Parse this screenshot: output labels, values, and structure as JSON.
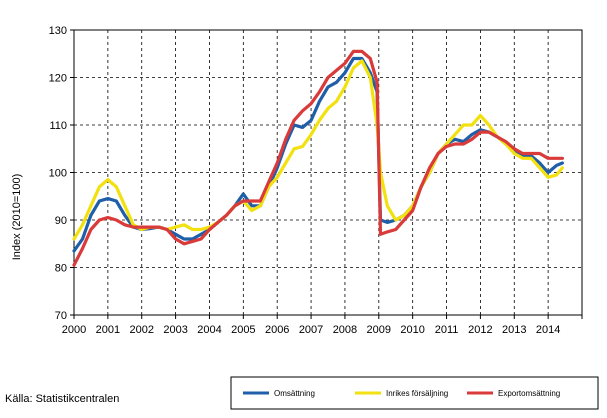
{
  "chart_data": {
    "type": "line",
    "title": "",
    "xlabel": "",
    "ylabel": "Index (2010=100)",
    "ylim": [
      70,
      130
    ],
    "yticks": [
      70,
      80,
      90,
      100,
      110,
      120,
      130
    ],
    "xlim": [
      2000,
      2015
    ],
    "xticks": [
      "2000",
      "2001",
      "2002",
      "2003",
      "2004",
      "2005",
      "2006",
      "2007",
      "2008",
      "2009",
      "2010",
      "2011",
      "2012",
      "2013",
      "2014"
    ],
    "grid": "dashed-both",
    "legend_position": "bottom-right",
    "series": [
      {
        "name": "Omsättning",
        "color": "#1f5ea8",
        "points": [
          [
            2000.0,
            83.5
          ],
          [
            2000.25,
            86
          ],
          [
            2000.5,
            91
          ],
          [
            2000.75,
            94
          ],
          [
            2001.0,
            94.5
          ],
          [
            2001.25,
            94
          ],
          [
            2001.5,
            91
          ],
          [
            2001.75,
            88.5
          ],
          [
            2002.0,
            88
          ],
          [
            2002.25,
            88.2
          ],
          [
            2002.5,
            88.5
          ],
          [
            2002.75,
            88
          ],
          [
            2003.0,
            87
          ],
          [
            2003.25,
            86
          ],
          [
            2003.5,
            86
          ],
          [
            2003.75,
            87
          ],
          [
            2004.0,
            88
          ],
          [
            2004.25,
            89.5
          ],
          [
            2004.5,
            91
          ],
          [
            2004.75,
            93
          ],
          [
            2005.0,
            95.5
          ],
          [
            2005.25,
            93
          ],
          [
            2005.5,
            93
          ],
          [
            2005.75,
            97
          ],
          [
            2006.0,
            101
          ],
          [
            2006.25,
            106
          ],
          [
            2006.5,
            110
          ],
          [
            2006.75,
            109.5
          ],
          [
            2007.0,
            111
          ],
          [
            2007.25,
            115
          ],
          [
            2007.5,
            118
          ],
          [
            2007.75,
            119
          ],
          [
            2008.0,
            121
          ],
          [
            2008.25,
            124
          ],
          [
            2008.5,
            124
          ],
          [
            2008.75,
            121
          ],
          [
            2008.95,
            117
          ],
          [
            2009.05,
            90
          ],
          [
            2009.25,
            89.5
          ],
          [
            2009.5,
            90
          ],
          [
            2009.75,
            91
          ],
          [
            2010.0,
            93
          ],
          [
            2010.25,
            97
          ],
          [
            2010.5,
            100
          ],
          [
            2010.75,
            104
          ],
          [
            2011.0,
            106
          ],
          [
            2011.25,
            107
          ],
          [
            2011.5,
            106.5
          ],
          [
            2011.75,
            108
          ],
          [
            2012.0,
            109
          ],
          [
            2012.25,
            108.5
          ],
          [
            2012.5,
            107.5
          ],
          [
            2012.75,
            106
          ],
          [
            2013.0,
            104.5
          ],
          [
            2013.25,
            103.5
          ],
          [
            2013.5,
            103.5
          ],
          [
            2013.75,
            102
          ],
          [
            2014.0,
            100
          ],
          [
            2014.25,
            101.5
          ],
          [
            2014.42,
            102
          ]
        ]
      },
      {
        "name": "Inrikes försäljning",
        "color": "#f2e10f",
        "points": [
          [
            2000.0,
            86
          ],
          [
            2000.25,
            89
          ],
          [
            2000.5,
            93
          ],
          [
            2000.75,
            97
          ],
          [
            2001.0,
            98.5
          ],
          [
            2001.25,
            97
          ],
          [
            2001.5,
            93
          ],
          [
            2001.75,
            89
          ],
          [
            2002.0,
            88
          ],
          [
            2002.25,
            88.5
          ],
          [
            2002.5,
            88.5
          ],
          [
            2002.75,
            88
          ],
          [
            2003.0,
            88.5
          ],
          [
            2003.25,
            89
          ],
          [
            2003.5,
            88
          ],
          [
            2003.75,
            88
          ],
          [
            2004.0,
            88.5
          ],
          [
            2004.25,
            89.5
          ],
          [
            2004.5,
            91
          ],
          [
            2004.75,
            93
          ],
          [
            2005.0,
            94
          ],
          [
            2005.25,
            92
          ],
          [
            2005.5,
            93
          ],
          [
            2005.75,
            97
          ],
          [
            2006.0,
            99
          ],
          [
            2006.25,
            102
          ],
          [
            2006.5,
            105
          ],
          [
            2006.75,
            105.5
          ],
          [
            2007.0,
            108
          ],
          [
            2007.25,
            111
          ],
          [
            2007.5,
            113.5
          ],
          [
            2007.75,
            115
          ],
          [
            2008.0,
            118
          ],
          [
            2008.25,
            122
          ],
          [
            2008.5,
            123.5
          ],
          [
            2008.75,
            120
          ],
          [
            2008.95,
            110
          ],
          [
            2009.05,
            100
          ],
          [
            2009.25,
            93
          ],
          [
            2009.5,
            90
          ],
          [
            2009.75,
            91
          ],
          [
            2010.0,
            93
          ],
          [
            2010.25,
            97
          ],
          [
            2010.5,
            100
          ],
          [
            2010.75,
            104
          ],
          [
            2011.0,
            106
          ],
          [
            2011.25,
            108
          ],
          [
            2011.5,
            110
          ],
          [
            2011.75,
            110
          ],
          [
            2012.0,
            112
          ],
          [
            2012.25,
            110
          ],
          [
            2012.5,
            107.5
          ],
          [
            2012.75,
            106
          ],
          [
            2013.0,
            104
          ],
          [
            2013.25,
            103
          ],
          [
            2013.5,
            103
          ],
          [
            2013.75,
            101
          ],
          [
            2014.0,
            99
          ],
          [
            2014.25,
            99.5
          ],
          [
            2014.42,
            101
          ]
        ]
      },
      {
        "name": "Exportomsättning",
        "color": "#d93a3a",
        "points": [
          [
            2000.0,
            80.5
          ],
          [
            2000.25,
            84
          ],
          [
            2000.5,
            88
          ],
          [
            2000.75,
            90
          ],
          [
            2001.0,
            90.5
          ],
          [
            2001.25,
            90
          ],
          [
            2001.5,
            89
          ],
          [
            2001.75,
            88.5
          ],
          [
            2002.0,
            88.5
          ],
          [
            2002.25,
            88.5
          ],
          [
            2002.5,
            88.5
          ],
          [
            2002.75,
            88
          ],
          [
            2003.0,
            86
          ],
          [
            2003.25,
            85
          ],
          [
            2003.5,
            85.5
          ],
          [
            2003.75,
            86
          ],
          [
            2004.0,
            88
          ],
          [
            2004.25,
            89.5
          ],
          [
            2004.5,
            91
          ],
          [
            2004.75,
            93
          ],
          [
            2005.0,
            94
          ],
          [
            2005.25,
            94
          ],
          [
            2005.5,
            94
          ],
          [
            2005.75,
            98
          ],
          [
            2006.0,
            102
          ],
          [
            2006.25,
            107
          ],
          [
            2006.5,
            111
          ],
          [
            2006.75,
            113
          ],
          [
            2007.0,
            114.5
          ],
          [
            2007.25,
            117
          ],
          [
            2007.5,
            120
          ],
          [
            2007.75,
            121.5
          ],
          [
            2008.0,
            123
          ],
          [
            2008.25,
            125.5
          ],
          [
            2008.5,
            125.5
          ],
          [
            2008.75,
            124
          ],
          [
            2008.95,
            119
          ],
          [
            2009.05,
            87
          ],
          [
            2009.25,
            87.5
          ],
          [
            2009.5,
            88
          ],
          [
            2009.75,
            90
          ],
          [
            2010.0,
            92
          ],
          [
            2010.25,
            97
          ],
          [
            2010.5,
            101
          ],
          [
            2010.75,
            104
          ],
          [
            2011.0,
            105.5
          ],
          [
            2011.25,
            106
          ],
          [
            2011.5,
            106
          ],
          [
            2011.75,
            107
          ],
          [
            2012.0,
            108.5
          ],
          [
            2012.25,
            108.5
          ],
          [
            2012.5,
            107.5
          ],
          [
            2012.75,
            106.5
          ],
          [
            2013.0,
            105
          ],
          [
            2013.25,
            104
          ],
          [
            2013.5,
            104
          ],
          [
            2013.75,
            104
          ],
          [
            2014.0,
            103
          ],
          [
            2014.25,
            103
          ],
          [
            2014.42,
            103
          ]
        ]
      }
    ]
  },
  "source": "Källa: Statistikcentralen"
}
